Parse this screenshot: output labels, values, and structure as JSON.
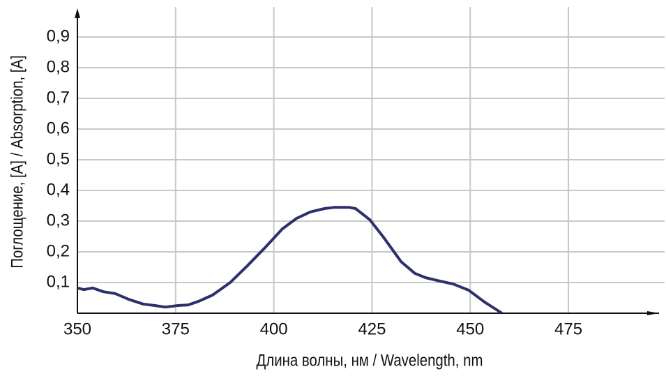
{
  "chart_data": {
    "type": "line",
    "xlabel": "Длина волны, нм / Wavelength, nm",
    "ylabel": "Поглощение, [A] / Absorption, [A]",
    "x": [
      350,
      351.6,
      353.9,
      356.6,
      359.6,
      363.1,
      366.7,
      369.7,
      372.4,
      375.6,
      378.2,
      380.9,
      384.4,
      388.9,
      393.3,
      397.8,
      402.2,
      405.8,
      409.3,
      412.9,
      415.5,
      419.1,
      420.8,
      424.4,
      427.9,
      432.4,
      435.9,
      438.6,
      442.2,
      445.7,
      449.6,
      453.7,
      458.1
    ],
    "series": [
      {
        "color": "#2e2f6b",
        "values": [
          0.082,
          0.077,
          0.082,
          0.07,
          0.064,
          0.045,
          0.03,
          0.025,
          0.02,
          0.025,
          0.027,
          0.039,
          0.059,
          0.1,
          0.155,
          0.214,
          0.275,
          0.309,
          0.33,
          0.341,
          0.345,
          0.345,
          0.341,
          0.305,
          0.248,
          0.168,
          0.13,
          0.116,
          0.105,
          0.095,
          0.075,
          0.036,
          0.0
        ]
      }
    ],
    "xlim": [
      350,
      497
    ],
    "ylim": [
      0,
      0.98
    ],
    "xticks": [
      350,
      375,
      400,
      425,
      450,
      475
    ],
    "yticks": [
      {
        "value": 0.1,
        "label": "0,1"
      },
      {
        "value": 0.2,
        "label": "0,2"
      },
      {
        "value": 0.3,
        "label": "0,3"
      },
      {
        "value": 0.4,
        "label": "0,4"
      },
      {
        "value": 0.5,
        "label": "0,5"
      },
      {
        "value": 0.6,
        "label": "0,6"
      },
      {
        "value": 0.7,
        "label": "0,7"
      },
      {
        "value": 0.8,
        "label": "0,8"
      },
      {
        "value": 0.9,
        "label": "0,9"
      }
    ],
    "grid": true
  }
}
